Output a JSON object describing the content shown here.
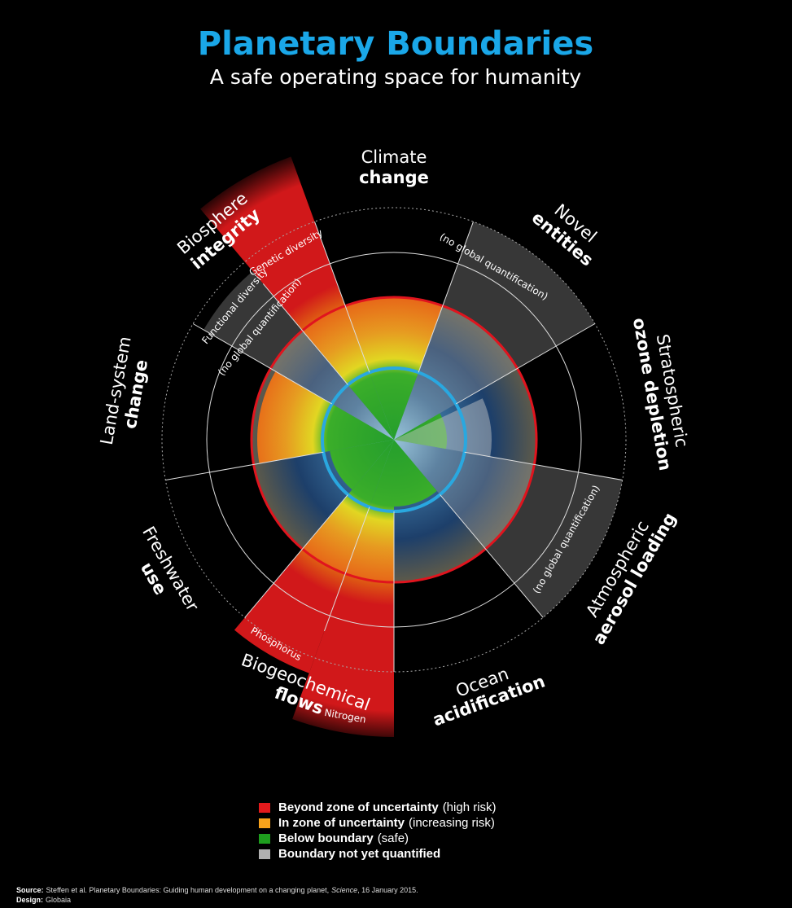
{
  "header": {
    "title": "Planetary Boundaries",
    "subtitle": "A safe operating space for humanity"
  },
  "boundaries": [
    {
      "label": "Climate",
      "label_bold": "change"
    },
    {
      "label": "Novel",
      "label_bold": "entities"
    },
    {
      "label": "Stratospheric",
      "label_bold": "ozone depletion"
    },
    {
      "label": "Atmospheric",
      "label_bold": "aerosol loading"
    },
    {
      "label": "Ocean",
      "label_bold": "acidification"
    },
    {
      "label": "Biogeochemical",
      "label_bold": "flows"
    },
    {
      "label": "Freshwater",
      "label_bold": "use"
    },
    {
      "label": "Land-system",
      "label_bold": "change"
    },
    {
      "label": "Biosphere",
      "label_bold": "integrity"
    }
  ],
  "annotations": [
    "Genetic diversity",
    "Functional diversity",
    "(no global quantification)",
    "(no global quantification)",
    "(no global quantification)",
    "Phosphorus",
    "Nitrogen"
  ],
  "legend": [
    {
      "label_bold": "Beyond zone of uncertainty",
      "label": "(high risk)",
      "color": "#e31a1c"
    },
    {
      "label_bold": "In zone of uncertainty",
      "label": "(increasing risk)",
      "color": "#f7a21b"
    },
    {
      "label_bold": "Below boundary",
      "label": "(safe)",
      "color": "#1e9e1e"
    },
    {
      "label_bold": "Boundary not yet quantified",
      "color": "#b0b0b0"
    }
  ],
  "footer": {
    "source_label": "Source:",
    "source_text": "Steffen et al. Planetary Boundaries: Guiding human development on a changing planet,",
    "source_journal": "Science",
    "source_date": ", 16 January 2015.",
    "design_label": "Design:",
    "design_text": "Globaia"
  }
}
